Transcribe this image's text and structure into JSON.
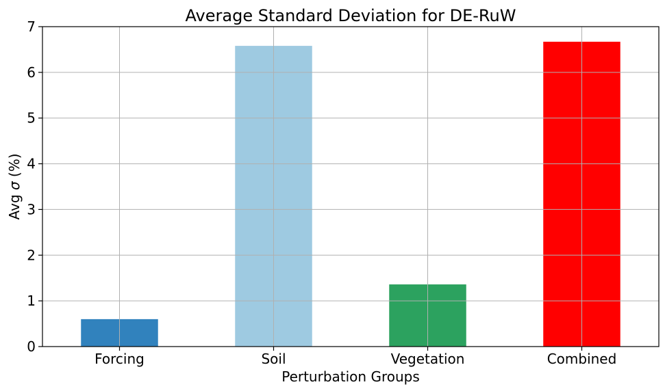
{
  "chart_data": {
    "type": "bar",
    "title": "Average Standard Deviation for DE-RuW",
    "xlabel": "Perturbation Groups",
    "ylabel": {
      "prefix": "Avg ",
      "symbol": "σ",
      "suffix": " (%)"
    },
    "categories": [
      "Forcing",
      "Soil",
      "Vegetation",
      "Combined"
    ],
    "values": [
      0.6,
      6.58,
      1.36,
      6.67
    ],
    "colors": [
      "#3182bd",
      "#9ecae1",
      "#2ca25f",
      "#ff0000"
    ],
    "ylim": [
      0,
      7
    ],
    "yticks": [
      "0",
      "1",
      "2",
      "3",
      "4",
      "5",
      "6",
      "7"
    ],
    "grid": true,
    "legend": "none"
  }
}
